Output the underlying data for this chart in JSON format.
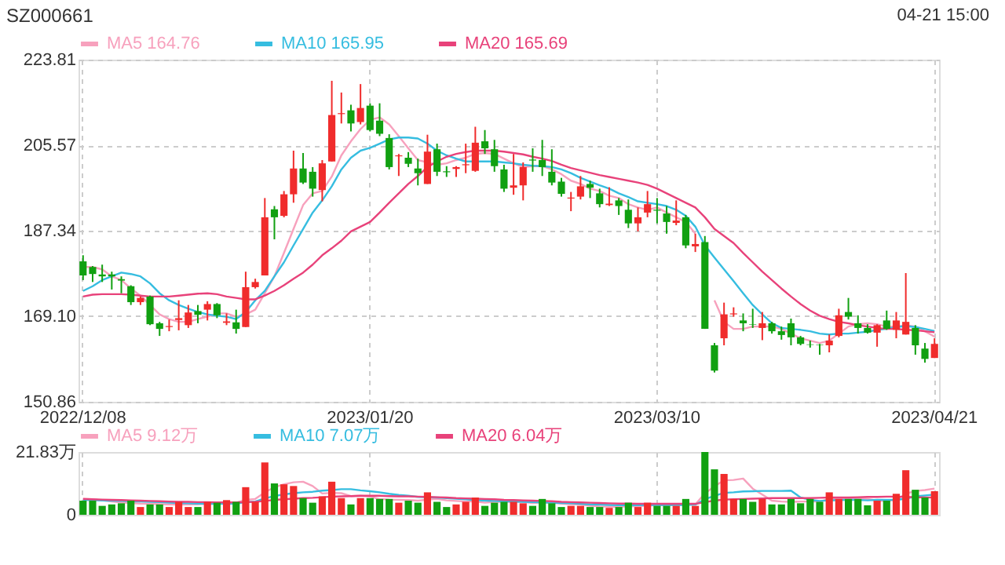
{
  "chart_data": [
    {
      "type": "candlestick",
      "title": "SZ000661",
      "annotations": [
        "04-21 15:00"
      ],
      "categories": [
        "2022/12/08",
        null,
        null,
        null,
        null,
        null,
        null,
        null,
        null,
        null,
        null,
        null,
        null,
        null,
        null,
        null,
        null,
        null,
        null,
        null,
        null,
        null,
        null,
        null,
        null,
        null,
        null,
        null,
        null,
        null,
        "2023/01/20",
        null,
        null,
        null,
        null,
        null,
        null,
        null,
        null,
        null,
        null,
        null,
        null,
        null,
        null,
        null,
        null,
        null,
        null,
        null,
        null,
        null,
        null,
        null,
        null,
        null,
        null,
        null,
        null,
        null,
        "2023/03/10",
        null,
        null,
        null,
        null,
        null,
        null,
        null,
        null,
        null,
        null,
        null,
        null,
        null,
        null,
        null,
        null,
        null,
        null,
        null,
        null,
        null,
        null,
        null,
        null,
        null,
        null,
        null,
        null,
        "2023/04/21"
      ],
      "ohlc": [
        [
          180.8,
          182.1,
          176.8,
          177.8
        ],
        [
          179.6,
          179.8,
          176.4,
          178.1
        ],
        [
          178.0,
          180.1,
          176.4,
          177.6
        ],
        [
          178.0,
          178.6,
          174.8,
          177.6
        ],
        [
          177.0,
          177.6,
          174.0,
          176.7
        ],
        [
          175.5,
          175.7,
          171.5,
          172.1
        ],
        [
          172.1,
          173.3,
          171.5,
          173.0
        ],
        [
          173.3,
          173.5,
          167.2,
          167.4
        ],
        [
          167.6,
          167.9,
          164.9,
          166.4
        ],
        [
          166.8,
          168.4,
          165.9,
          167.0
        ],
        [
          168.3,
          172.5,
          166.1,
          168.7
        ],
        [
          167.2,
          171.5,
          166.6,
          169.9
        ],
        [
          170.2,
          171.5,
          167.6,
          169.4
        ],
        [
          170.5,
          172.3,
          168.2,
          171.7
        ],
        [
          171.7,
          171.9,
          168.7,
          169.3
        ],
        [
          167.7,
          169.7,
          167.2,
          168.0
        ],
        [
          167.8,
          170.5,
          165.4,
          166.4
        ],
        [
          166.8,
          178.6,
          166.8,
          175.3
        ],
        [
          175.3,
          177.1,
          175.0,
          176.4
        ],
        [
          177.8,
          194.3,
          177.8,
          190.2
        ],
        [
          191.9,
          192.6,
          185.5,
          190.2
        ],
        [
          190.5,
          195.8,
          190.2,
          195.1
        ],
        [
          195.1,
          204.4,
          193.3,
          200.6
        ],
        [
          200.6,
          203.9,
          197.3,
          197.6
        ],
        [
          199.9,
          200.9,
          194.6,
          196.3
        ],
        [
          196.0,
          202.4,
          193.6,
          201.7
        ],
        [
          202.1,
          219.3,
          202.1,
          212.0
        ],
        [
          212.2,
          216.8,
          210.2,
          212.4
        ],
        [
          213.0,
          214.2,
          208.5,
          210.2
        ],
        [
          210.5,
          218.6,
          210.0,
          213.5
        ],
        [
          214.0,
          214.5,
          208.5,
          208.8
        ],
        [
          210.8,
          214.5,
          207.5,
          208.0
        ],
        [
          207.1,
          207.9,
          200.4,
          200.9
        ],
        [
          203.2,
          203.7,
          199.0,
          203.4
        ],
        [
          202.9,
          204.1,
          200.9,
          201.6
        ],
        [
          200.6,
          202.7,
          197.0,
          199.6
        ],
        [
          197.3,
          207.8,
          197.3,
          204.2
        ],
        [
          204.7,
          205.9,
          199.0,
          199.9
        ],
        [
          200.0,
          201.1,
          198.8,
          199.8
        ],
        [
          200.5,
          201.1,
          198.8,
          200.9
        ],
        [
          201.3,
          205.9,
          199.6,
          201.5
        ],
        [
          200.1,
          209.5,
          199.9,
          206.1
        ],
        [
          206.4,
          208.8,
          203.7,
          204.9
        ],
        [
          204.7,
          206.7,
          199.9,
          201.1
        ],
        [
          200.4,
          201.4,
          195.6,
          196.3
        ],
        [
          196.5,
          203.7,
          195.0,
          197.0
        ],
        [
          197.0,
          201.9,
          193.8,
          200.9
        ],
        [
          202.5,
          204.9,
          199.9,
          202.3
        ],
        [
          202.4,
          206.7,
          199.0,
          200.9
        ],
        [
          199.9,
          204.7,
          197.0,
          197.6
        ],
        [
          197.8,
          198.6,
          194.6,
          195.2
        ],
        [
          194.2,
          195.6,
          191.5,
          194.4
        ],
        [
          194.6,
          199.0,
          194.0,
          196.8
        ],
        [
          197.3,
          198.0,
          194.3,
          196.5
        ],
        [
          195.3,
          196.3,
          192.3,
          193.0
        ],
        [
          192.8,
          196.6,
          192.6,
          193.1
        ],
        [
          193.8,
          194.3,
          190.7,
          192.6
        ],
        [
          191.8,
          194.0,
          187.9,
          188.9
        ],
        [
          188.9,
          192.3,
          187.2,
          190.2
        ],
        [
          191.2,
          195.8,
          190.2,
          193.0
        ],
        [
          191.8,
          194.3,
          188.9,
          191.6
        ],
        [
          191.0,
          192.6,
          186.7,
          189.2
        ],
        [
          189.0,
          193.8,
          188.5,
          189.5
        ],
        [
          190.2,
          190.7,
          183.6,
          184.2
        ],
        [
          184.0,
          186.7,
          182.8,
          184.5
        ],
        [
          184.9,
          186.2,
          166.4,
          166.4
        ],
        [
          162.9,
          163.4,
          157.1,
          157.5
        ],
        [
          164.4,
          172.0,
          162.9,
          169.5
        ],
        [
          169.5,
          171.0,
          169.0,
          169.7
        ],
        [
          168.2,
          169.7,
          165.9,
          167.6
        ],
        [
          167.4,
          170.7,
          166.6,
          167.3
        ],
        [
          166.6,
          170.0,
          164.0,
          167.6
        ],
        [
          167.6,
          167.9,
          165.4,
          165.9
        ],
        [
          165.9,
          166.9,
          164.1,
          165.1
        ],
        [
          167.6,
          168.6,
          162.9,
          164.6
        ],
        [
          164.6,
          164.9,
          162.9,
          163.2
        ],
        [
          163.1,
          163.9,
          162.4,
          163.0
        ],
        [
          163.0,
          163.2,
          160.9,
          162.9
        ],
        [
          162.9,
          165.2,
          161.4,
          163.9
        ],
        [
          164.9,
          170.7,
          164.6,
          169.3
        ],
        [
          170.0,
          173.0,
          168.4,
          169.0
        ],
        [
          167.6,
          169.3,
          165.4,
          166.6
        ],
        [
          166.6,
          167.4,
          165.4,
          165.6
        ],
        [
          165.6,
          167.4,
          162.6,
          167.2
        ],
        [
          168.2,
          170.3,
          166.2,
          166.4
        ],
        [
          166.2,
          170.0,
          164.4,
          168.2
        ],
        [
          165.2,
          178.3,
          165.2,
          167.9
        ],
        [
          166.6,
          167.2,
          160.9,
          162.9
        ],
        [
          162.2,
          163.4,
          159.2,
          160.0
        ],
        [
          160.2,
          164.4,
          160.2,
          163.2
        ]
      ],
      "colors": [
        "#11a011",
        "#11a011",
        "#11a011",
        "#11a011",
        "#11a011",
        "#11a011",
        "#f02c2c",
        "#11a011",
        "#11a011",
        "#f02c2c",
        "#f02c2c",
        "#f02c2c",
        "#11a011",
        "#f02c2c",
        "#11a011",
        "#f02c2c",
        "#11a011",
        "#f02c2c",
        "#f02c2c",
        "#f02c2c",
        "#11a011",
        "#f02c2c",
        "#f02c2c",
        "#11a011",
        "#11a011",
        "#f02c2c",
        "#f02c2c",
        "#f02c2c",
        "#11a011",
        "#f02c2c",
        "#11a011",
        "#11a011",
        "#11a011",
        "#f02c2c",
        "#11a011",
        "#11a011",
        "#f02c2c",
        "#11a011",
        "#11a011",
        "#f02c2c",
        "#f02c2c",
        "#f02c2c",
        "#11a011",
        "#11a011",
        "#11a011",
        "#f02c2c",
        "#f02c2c",
        "#11a011",
        "#11a011",
        "#11a011",
        "#11a011",
        "#f02c2c",
        "#f02c2c",
        "#11a011",
        "#11a011",
        "#f02c2c",
        "#11a011",
        "#11a011",
        "#f02c2c",
        "#f02c2c",
        "#11a011",
        "#11a011",
        "#f02c2c",
        "#11a011",
        "#f02c2c",
        "#11a011",
        "#11a011",
        "#f02c2c",
        "#f02c2c",
        "#11a011",
        "#11a011",
        "#f02c2c",
        "#11a011",
        "#11a011",
        "#11a011",
        "#11a011",
        "#11a011",
        "#11a011",
        "#f02c2c",
        "#f02c2c",
        "#11a011",
        "#11a011",
        "#11a011",
        "#f02c2c",
        "#11a011",
        "#f02c2c",
        "#f02c2c",
        "#11a011",
        "#11a011",
        "#f02c2c"
      ],
      "series": [
        {
          "type": "line",
          "name": "MA5 164.76",
          "color": "#f7a1bd",
          "values": [
            179.6,
            179.6,
            179.1,
            177.6,
            176.8,
            175.0,
            173.5,
            171.5,
            169.5,
            168.5,
            167.9,
            167.9,
            168.5,
            169.0,
            169.7,
            169.7,
            169.0,
            169.5,
            170.5,
            174.0,
            177.6,
            182.6,
            187.7,
            192.8,
            195.3,
            195.8,
            198.9,
            203.4,
            206.4,
            209.0,
            211.0,
            211.5,
            210.0,
            207.5,
            204.9,
            202.4,
            201.9,
            201.4,
            201.7,
            202.4,
            202.9,
            203.7,
            203.9,
            203.7,
            202.7,
            201.7,
            200.9,
            201.1,
            201.1,
            200.4,
            199.4,
            198.0,
            197.3,
            196.3,
            195.8,
            194.8,
            194.3,
            193.0,
            192.3,
            191.8,
            192.3,
            191.2,
            190.2,
            189.2,
            186.7,
            null,
            172.5,
            167.9,
            166.4,
            166.4,
            166.9,
            166.9,
            166.9,
            166.4,
            165.4,
            164.4,
            163.9,
            163.4,
            163.9,
            165.4,
            166.9,
            167.4,
            167.6,
            167.4,
            166.9,
            166.9,
            167.2,
            166.9,
            165.9,
            164.76
          ]
        },
        {
          "type": "line",
          "name": "MA10 165.95",
          "color": "#36bde0",
          "values": [
            174.5,
            175.5,
            176.8,
            177.6,
            178.4,
            178.1,
            177.6,
            176.1,
            174.0,
            172.5,
            171.5,
            170.7,
            170.0,
            169.5,
            169.2,
            169.0,
            168.5,
            170.0,
            172.5,
            174.5,
            177.6,
            180.6,
            184.2,
            187.7,
            191.2,
            193.8,
            196.8,
            200.4,
            202.9,
            204.4,
            205.0,
            205.9,
            206.8,
            207.2,
            207.2,
            207.0,
            205.9,
            204.4,
            203.4,
            202.7,
            202.1,
            202.1,
            202.1,
            202.1,
            201.9,
            201.7,
            201.4,
            201.2,
            201.1,
            200.9,
            200.4,
            199.6,
            198.6,
            197.8,
            197.0,
            196.3,
            195.3,
            194.5,
            193.6,
            193.3,
            193.0,
            192.6,
            191.8,
            190.5,
            188.2,
            184.2,
            181.6,
            179.1,
            176.6,
            174.0,
            171.5,
            169.5,
            167.6,
            166.6,
            166.4,
            166.2,
            165.9,
            165.4,
            165.2,
            165.4,
            165.4,
            165.6,
            165.8,
            166.2,
            166.4,
            166.8,
            167.0,
            166.8,
            166.4,
            165.95
          ]
        },
        {
          "type": "line",
          "name": "MA20 165.69",
          "color": "#e8427a",
          "values": [
            173.3,
            173.7,
            173.8,
            173.8,
            173.8,
            173.7,
            173.5,
            173.3,
            173.3,
            173.3,
            173.5,
            173.7,
            173.9,
            174.0,
            173.8,
            173.3,
            173.0,
            172.7,
            172.7,
            173.5,
            174.5,
            175.7,
            177.1,
            178.4,
            180.1,
            182.1,
            183.6,
            185.2,
            187.2,
            188.2,
            189.2,
            191.2,
            193.3,
            195.3,
            197.3,
            199.0,
            200.9,
            202.1,
            203.1,
            203.7,
            204.1,
            204.4,
            204.4,
            204.4,
            204.2,
            203.9,
            203.6,
            203.1,
            202.7,
            202.2,
            201.4,
            200.7,
            200.2,
            199.7,
            199.2,
            198.8,
            198.4,
            198.0,
            197.6,
            197.1,
            196.3,
            195.3,
            194.3,
            193.3,
            192.3,
            190.2,
            187.7,
            186.2,
            184.7,
            182.6,
            180.6,
            178.6,
            176.8,
            175.0,
            173.3,
            171.7,
            170.3,
            169.2,
            168.5,
            167.9,
            167.6,
            167.2,
            166.9,
            166.6,
            166.4,
            166.4,
            166.2,
            166.1,
            165.9,
            165.69
          ]
        }
      ],
      "ylim": [
        150.86,
        223.81
      ],
      "yticks": [
        150.86,
        {
          "value": 169.1,
          "label": "169.10"
        },
        187.34,
        205.57,
        223.81
      ],
      "grid": true,
      "legend": "top left"
    },
    {
      "type": "bar",
      "categories": [
        "2022/12/08",
        null,
        null,
        null,
        null,
        null,
        null,
        null,
        null,
        null,
        null,
        null,
        null,
        null,
        null,
        null,
        null,
        null,
        null,
        null,
        null,
        null,
        null,
        null,
        null,
        null,
        null,
        null,
        null,
        null,
        "2023/01/20",
        null,
        null,
        null,
        null,
        null,
        null,
        null,
        null,
        null,
        null,
        null,
        null,
        null,
        null,
        null,
        null,
        null,
        null,
        null,
        null,
        null,
        null,
        null,
        null,
        null,
        null,
        null,
        null,
        null,
        "2023/03/10",
        null,
        null,
        null,
        null,
        null,
        null,
        null,
        null,
        null,
        null,
        null,
        null,
        null,
        null,
        null,
        null,
        null,
        null,
        null,
        null,
        null,
        null,
        null,
        null,
        null,
        null,
        null,
        null,
        "2023/04/21"
      ],
      "values": [
        4.9,
        4.9,
        3.1,
        3.6,
        4.0,
        4.9,
        2.7,
        3.6,
        3.6,
        2.7,
        4.5,
        2.7,
        2.7,
        4.5,
        4.2,
        5.1,
        4.5,
        9.6,
        4.5,
        18.2,
        10.9,
        10.6,
        10.0,
        5.8,
        4.2,
        6.4,
        11.5,
        5.8,
        3.6,
        5.8,
        5.8,
        5.5,
        5.5,
        4.2,
        4.9,
        4.2,
        7.8,
        4.5,
        2.7,
        3.6,
        4.5,
        6.0,
        3.1,
        4.2,
        4.5,
        4.5,
        4.0,
        3.1,
        5.5,
        4.0,
        2.7,
        3.1,
        3.1,
        2.7,
        2.7,
        2.4,
        2.7,
        4.2,
        2.7,
        4.2,
        3.1,
        3.1,
        3.1,
        5.5,
        3.1,
        21.83,
        15.8,
        14.2,
        5.5,
        5.5,
        4.5,
        5.5,
        3.6,
        3.6,
        5.5,
        4.0,
        5.5,
        4.5,
        7.8,
        5.5,
        5.5,
        5.5,
        3.3,
        4.9,
        4.9,
        7.3,
        15.5,
        8.7,
        6.0,
        8.2
      ],
      "colors": [
        "#11a011",
        "#11a011",
        "#11a011",
        "#11a011",
        "#11a011",
        "#11a011",
        "#f02c2c",
        "#11a011",
        "#11a011",
        "#f02c2c",
        "#f02c2c",
        "#f02c2c",
        "#11a011",
        "#f02c2c",
        "#11a011",
        "#f02c2c",
        "#11a011",
        "#f02c2c",
        "#f02c2c",
        "#f02c2c",
        "#11a011",
        "#f02c2c",
        "#f02c2c",
        "#11a011",
        "#11a011",
        "#f02c2c",
        "#f02c2c",
        "#f02c2c",
        "#11a011",
        "#f02c2c",
        "#11a011",
        "#11a011",
        "#11a011",
        "#f02c2c",
        "#11a011",
        "#11a011",
        "#f02c2c",
        "#11a011",
        "#11a011",
        "#f02c2c",
        "#f02c2c",
        "#f02c2c",
        "#11a011",
        "#11a011",
        "#11a011",
        "#f02c2c",
        "#f02c2c",
        "#11a011",
        "#11a011",
        "#11a011",
        "#11a011",
        "#f02c2c",
        "#f02c2c",
        "#11a011",
        "#11a011",
        "#f02c2c",
        "#11a011",
        "#11a011",
        "#f02c2c",
        "#f02c2c",
        "#11a011",
        "#11a011",
        "#f02c2c",
        "#11a011",
        "#f02c2c",
        "#11a011",
        "#11a011",
        "#f02c2c",
        "#f02c2c",
        "#11a011",
        "#11a011",
        "#f02c2c",
        "#11a011",
        "#11a011",
        "#11a011",
        "#11a011",
        "#11a011",
        "#11a011",
        "#f02c2c",
        "#f02c2c",
        "#11a011",
        "#11a011",
        "#11a011",
        "#f02c2c",
        "#11a011",
        "#f02c2c",
        "#f02c2c",
        "#11a011",
        "#11a011",
        "#f02c2c"
      ],
      "series": [
        {
          "type": "line",
          "name": "MA5 9.12万",
          "color": "#f7a1bd",
          "values": [
            5.6,
            5.4,
            5.0,
            4.6,
            4.3,
            4.1,
            3.9,
            3.8,
            3.7,
            3.6,
            3.5,
            3.6,
            3.7,
            3.8,
            3.9,
            4.0,
            4.2,
            5.2,
            5.5,
            7.8,
            9.6,
            10.6,
            11.3,
            11.5,
            10.0,
            7.4,
            7.6,
            7.5,
            6.5,
            6.6,
            6.3,
            5.5,
            5.3,
            5.2,
            5.1,
            4.9,
            5.3,
            5.5,
            5.0,
            4.8,
            4.6,
            4.6,
            4.2,
            4.5,
            4.5,
            4.5,
            4.5,
            4.1,
            4.3,
            4.2,
            3.9,
            3.7,
            3.6,
            3.1,
            2.9,
            2.8,
            2.8,
            2.9,
            3.0,
            3.2,
            3.3,
            3.4,
            3.3,
            3.6,
            3.6,
            7.4,
            9.9,
            12.0,
            12.1,
            12.6,
            9.1,
            7.0,
            4.9,
            4.6,
            4.5,
            4.6,
            4.6,
            4.6,
            5.5,
            5.5,
            5.7,
            5.8,
            5.5,
            4.9,
            4.8,
            5.2,
            7.3,
            8.3,
            8.6,
            9.12
          ]
        },
        {
          "type": "line",
          "name": "MA10 7.07万",
          "color": "#36bde0",
          "values": [
            5.2,
            5.1,
            5.0,
            4.9,
            4.8,
            4.7,
            4.6,
            4.5,
            4.4,
            4.2,
            4.1,
            4.0,
            3.9,
            3.8,
            3.8,
            3.8,
            3.9,
            4.4,
            4.6,
            5.7,
            6.5,
            7.1,
            7.5,
            7.8,
            8.0,
            8.4,
            8.6,
            8.9,
            8.9,
            8.5,
            8.2,
            7.8,
            7.3,
            6.9,
            6.6,
            6.2,
            6.1,
            6.0,
            5.8,
            5.6,
            5.4,
            5.1,
            4.9,
            4.8,
            4.7,
            4.6,
            4.5,
            4.4,
            4.3,
            4.2,
            4.1,
            4.0,
            3.8,
            3.6,
            3.5,
            3.4,
            3.3,
            3.3,
            3.3,
            3.4,
            3.4,
            3.4,
            3.4,
            3.4,
            3.5,
            5.4,
            6.6,
            7.6,
            7.8,
            8.1,
            8.2,
            8.3,
            8.3,
            8.3,
            8.4,
            6.0,
            5.2,
            4.8,
            5.0,
            5.1,
            5.2,
            5.2,
            5.0,
            5.2,
            5.2,
            5.2,
            5.6,
            6.4,
            6.7,
            7.07
          ]
        },
        {
          "type": "line",
          "name": "MA20 6.04万",
          "color": "#e8427a",
          "values": [
            5.5,
            5.4,
            5.3,
            5.2,
            5.1,
            5.0,
            4.9,
            4.8,
            4.7,
            4.6,
            4.5,
            4.5,
            4.4,
            4.4,
            4.3,
            4.3,
            4.3,
            4.4,
            4.5,
            4.8,
            5.2,
            5.4,
            5.6,
            5.8,
            5.9,
            6.1,
            6.3,
            6.4,
            6.5,
            6.6,
            6.6,
            6.6,
            6.5,
            6.4,
            6.4,
            6.3,
            6.2,
            6.1,
            6.0,
            5.8,
            5.7,
            5.6,
            5.5,
            5.4,
            5.2,
            5.1,
            5.0,
            4.9,
            4.8,
            4.7,
            4.5,
            4.4,
            4.3,
            4.2,
            4.1,
            4.0,
            3.9,
            3.9,
            3.8,
            3.8,
            3.8,
            3.8,
            3.8,
            3.8,
            3.8,
            4.4,
            4.9,
            5.3,
            5.4,
            5.5,
            5.6,
            5.7,
            5.8,
            5.8,
            5.8,
            5.8,
            5.8,
            5.9,
            6.0,
            6.0,
            6.0,
            6.1,
            6.2,
            6.2,
            6.3,
            6.3,
            6.2,
            6.1,
            6.0,
            6.04
          ]
        }
      ],
      "ylim": [
        0,
        21.83
      ],
      "yticks": [
        0,
        {
          "value": 21.83,
          "label": "21.83万"
        }
      ],
      "grid": "x",
      "legend": "top left",
      "tick_labels": "y"
    }
  ]
}
